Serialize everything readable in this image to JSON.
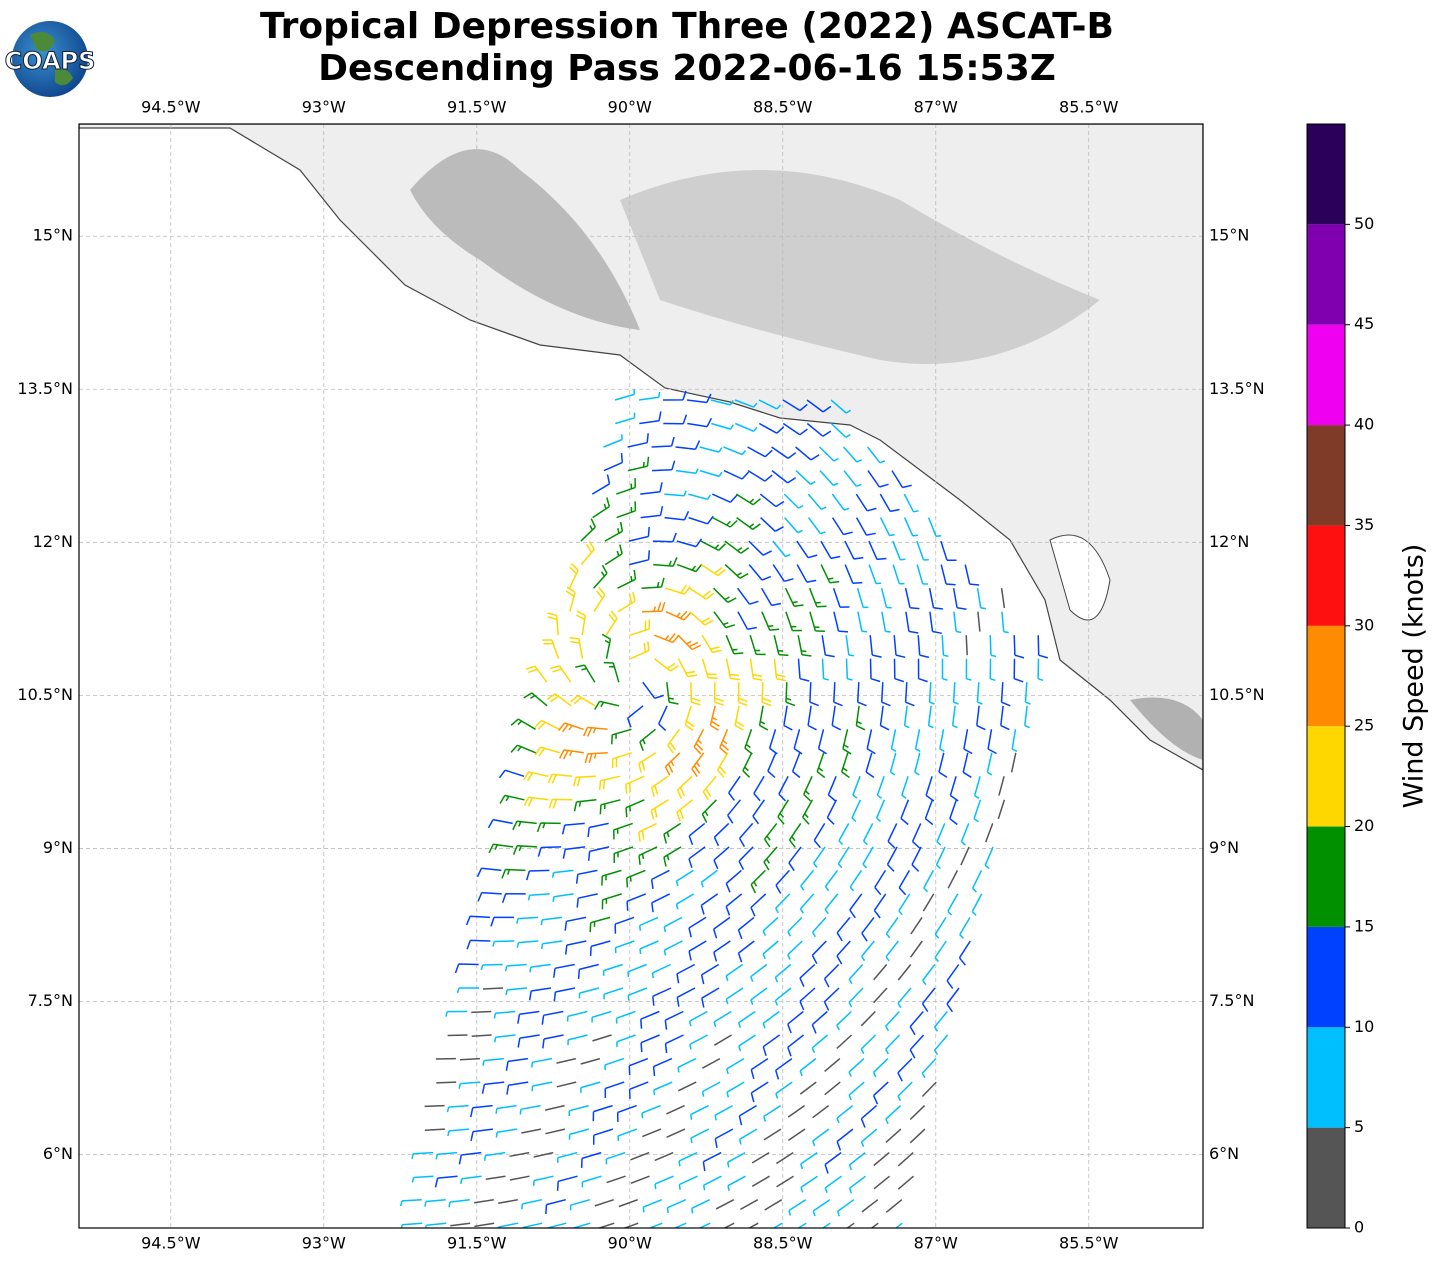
{
  "header": {
    "title_lines": [
      "Tropical Depression Three (2022) ASCAT-B",
      "Descending Pass 2022-06-16 15:53Z"
    ],
    "logo": "COAPS"
  },
  "map": {
    "lonlim": [
      -95.4,
      -84.38
    ],
    "latlim": [
      5.28,
      16.1
    ],
    "lonticks": [
      {
        "value": -94.5,
        "label": "94.5°W"
      },
      {
        "value": -93,
        "label": "93°W"
      },
      {
        "value": -91.5,
        "label": "91.5°W"
      },
      {
        "value": -90,
        "label": "90°W"
      },
      {
        "value": -88.5,
        "label": "88.5°W"
      },
      {
        "value": -87,
        "label": "87°W"
      },
      {
        "value": -85.5,
        "label": "85.5°W"
      }
    ],
    "latticks": [
      {
        "value": 15,
        "label": "15°N"
      },
      {
        "value": 13.5,
        "label": "13.5°N"
      },
      {
        "value": 12,
        "label": "12°N"
      },
      {
        "value": 10.5,
        "label": "10.5°N"
      },
      {
        "value": 9,
        "label": "9°N"
      },
      {
        "value": 7.5,
        "label": "7.5°N"
      },
      {
        "value": 6,
        "label": "6°N"
      }
    ],
    "grid": true
  },
  "colorbar": {
    "label": "Wind Speed (knots)",
    "bins": [
      0,
      5,
      10,
      15,
      20,
      25,
      30,
      35,
      40,
      45,
      50,
      55
    ],
    "colors": [
      "#555555",
      "#00bfff",
      "#0040ff",
      "#009000",
      "#ffd700",
      "#ff8c00",
      "#ff1010",
      "#803a28",
      "#f000f0",
      "#8000b0",
      "#2a005a"
    ],
    "ticks": [
      0,
      5,
      10,
      15,
      20,
      25,
      30,
      35,
      40,
      45,
      50
    ]
  }
}
